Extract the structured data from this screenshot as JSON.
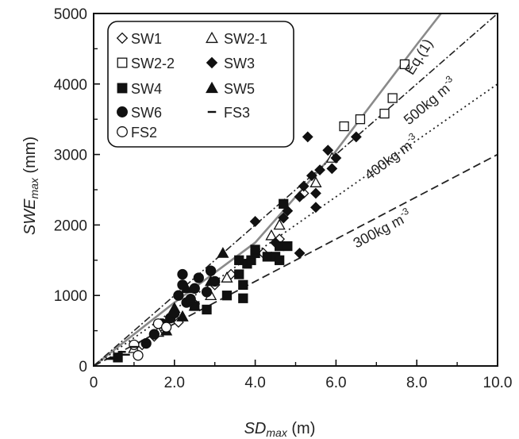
{
  "chart_data": {
    "type": "scatter",
    "xlabel": {
      "main": "SD",
      "sub": "max",
      "unit": " (m)"
    },
    "ylabel": {
      "main": "SWE",
      "sub": "max",
      "unit": "  (mm)"
    },
    "xlim": [
      0,
      10
    ],
    "ylim": [
      0,
      5000
    ],
    "x_ticks": [
      "0",
      "2.0",
      "4.0",
      "6.0",
      "8.0",
      "10.0"
    ],
    "x_tick_values": [
      0,
      2,
      4,
      6,
      8,
      10
    ],
    "y_ticks": [
      "0",
      "1000",
      "2000",
      "3000",
      "4000",
      "5000"
    ],
    "y_tick_values": [
      0,
      1000,
      2000,
      3000,
      4000,
      5000
    ],
    "grid": false,
    "legend_position": "top-left",
    "series": [
      {
        "name": "SW1",
        "marker": "diamond-open",
        "points": [
          [
            1.2,
            300
          ],
          [
            1.5,
            420
          ],
          [
            2.1,
            620
          ],
          [
            2.5,
            880
          ],
          [
            3.0,
            1150
          ],
          [
            3.4,
            1300
          ],
          [
            4.2,
            1600
          ],
          [
            4.6,
            1800
          ],
          [
            5.2,
            2450
          ]
        ]
      },
      {
        "name": "SW2-1",
        "marker": "triangle-open",
        "points": [
          [
            1.0,
            250
          ],
          [
            1.6,
            480
          ],
          [
            2.2,
            700
          ],
          [
            2.9,
            1000
          ],
          [
            3.3,
            1250
          ],
          [
            4.4,
            1850
          ],
          [
            4.6,
            2000
          ],
          [
            5.5,
            2600
          ],
          [
            5.9,
            2950
          ]
        ]
      },
      {
        "name": "SW2-2",
        "marker": "square-open",
        "points": [
          [
            6.2,
            3400
          ],
          [
            6.6,
            3500
          ],
          [
            7.2,
            3580
          ],
          [
            7.4,
            3800
          ],
          [
            7.7,
            4280
          ]
        ]
      },
      {
        "name": "SW3",
        "marker": "diamond-filled",
        "points": [
          [
            4.0,
            2050
          ],
          [
            4.5,
            1750
          ],
          [
            4.7,
            2100
          ],
          [
            4.8,
            2200
          ],
          [
            5.1,
            1600
          ],
          [
            5.1,
            2400
          ],
          [
            5.2,
            2550
          ],
          [
            5.3,
            3250
          ],
          [
            5.4,
            2700
          ],
          [
            5.5,
            2250
          ],
          [
            5.5,
            2450
          ],
          [
            5.6,
            2780
          ],
          [
            5.8,
            3060
          ],
          [
            5.9,
            2800
          ],
          [
            6.0,
            2950
          ],
          [
            6.5,
            3250
          ]
        ]
      },
      {
        "name": "SW4",
        "marker": "square-filled",
        "points": [
          [
            0.6,
            120
          ],
          [
            2.5,
            850
          ],
          [
            2.8,
            800
          ],
          [
            3.3,
            1000
          ],
          [
            3.6,
            1300
          ],
          [
            3.6,
            1500
          ],
          [
            3.7,
            1150
          ],
          [
            3.8,
            1450
          ],
          [
            3.9,
            1500
          ],
          [
            4.0,
            1600
          ],
          [
            4.0,
            1650
          ],
          [
            4.3,
            1550
          ],
          [
            4.5,
            1550
          ],
          [
            4.6,
            1500
          ],
          [
            4.6,
            1700
          ],
          [
            4.7,
            2300
          ],
          [
            4.8,
            1700
          ],
          [
            3.7,
            960
          ]
        ]
      },
      {
        "name": "SW5",
        "marker": "triangle-filled",
        "points": [
          [
            1.8,
            500
          ],
          [
            2.0,
            820
          ],
          [
            2.2,
            700
          ],
          [
            2.3,
            1100
          ],
          [
            2.5,
            850
          ],
          [
            2.9,
            1200
          ],
          [
            3.2,
            1600
          ]
        ]
      },
      {
        "name": "SW6",
        "marker": "circle-filled",
        "points": [
          [
            1.3,
            320
          ],
          [
            1.5,
            450
          ],
          [
            1.7,
            600
          ],
          [
            1.9,
            680
          ],
          [
            2.0,
            750
          ],
          [
            2.1,
            1000
          ],
          [
            2.2,
            1150
          ],
          [
            2.2,
            1300
          ],
          [
            2.3,
            900
          ],
          [
            2.4,
            950
          ],
          [
            2.5,
            1100
          ],
          [
            2.6,
            1250
          ],
          [
            2.8,
            1050
          ],
          [
            2.9,
            1350
          ],
          [
            3.0,
            1200
          ]
        ]
      },
      {
        "name": "FS2",
        "marker": "circle-open",
        "points": [
          [
            1.0,
            300
          ],
          [
            1.1,
            150
          ],
          [
            1.6,
            600
          ],
          [
            1.8,
            550
          ]
        ]
      },
      {
        "name": "FS3",
        "marker": "dash",
        "points": [
          [
            0.4,
            100
          ],
          [
            0.5,
            120
          ],
          [
            0.7,
            200
          ],
          [
            0.8,
            160
          ],
          [
            1.0,
            270
          ],
          [
            1.3,
            350
          ]
        ]
      }
    ],
    "lines": [
      {
        "label": "Eq.(1)",
        "style": "solid-gray",
        "points": [
          [
            0,
            0
          ],
          [
            2,
            900
          ],
          [
            4,
            1750
          ],
          [
            6,
            3050
          ],
          [
            8,
            4560
          ],
          [
            8.6,
            5000
          ]
        ]
      },
      {
        "label": "500kg m-3",
        "style": "dash-dot",
        "density": 500,
        "points": [
          [
            0,
            0
          ],
          [
            10,
            5000
          ]
        ]
      },
      {
        "label": "400kg m-3",
        "style": "dotted",
        "density": 400,
        "points": [
          [
            0,
            0
          ],
          [
            10,
            4000
          ]
        ]
      },
      {
        "label": "300kg m-3",
        "style": "dashed",
        "density": 300,
        "points": [
          [
            0,
            0
          ],
          [
            10,
            3000
          ]
        ]
      }
    ],
    "annotations": [
      {
        "name": "eq1-label",
        "base": "Eq.(1)",
        "sup": "",
        "x": 8.15,
        "y": 4350,
        "rotate": -58
      },
      {
        "name": "rho500-label",
        "base": "500kg m",
        "sup": "-3",
        "x": 8.4,
        "y": 3700,
        "rotate": -40
      },
      {
        "name": "rho400-label",
        "base": "400kg m",
        "sup": "-3",
        "x": 7.45,
        "y": 2900,
        "rotate": -37
      },
      {
        "name": "rho300-label",
        "base": "300kg m",
        "sup": "-3",
        "x": 7.2,
        "y": 1880,
        "rotate": -28
      }
    ]
  }
}
